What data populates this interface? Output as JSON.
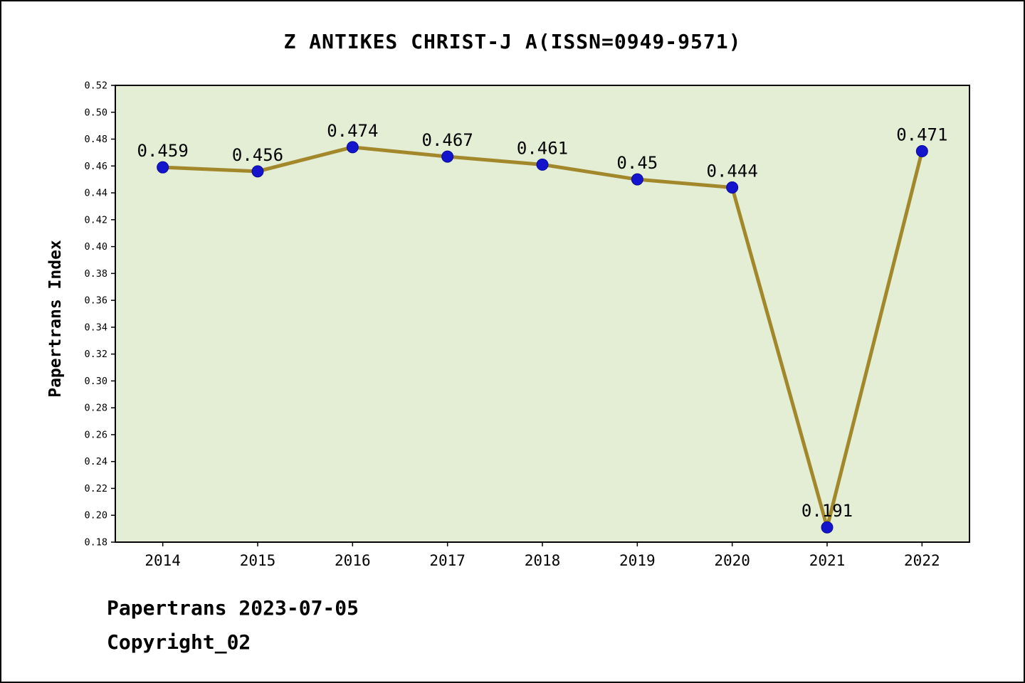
{
  "title": "Z ANTIKES CHRIST-J A(ISSN=0949-9571)",
  "footer": {
    "line1": "Papertrans 2023-07-05",
    "line2": "Copyright_02"
  },
  "chart_data": {
    "type": "line",
    "title": "Z ANTIKES CHRIST-J A(ISSN=0949-9571)",
    "xlabel": "",
    "ylabel": "Papertrans Index",
    "categories": [
      "2014",
      "2015",
      "2016",
      "2017",
      "2018",
      "2019",
      "2020",
      "2021",
      "2022"
    ],
    "values": [
      0.459,
      0.456,
      0.474,
      0.467,
      0.461,
      0.45,
      0.444,
      0.191,
      0.471
    ],
    "point_labels": [
      "0.459",
      "0.456",
      "0.474",
      "0.467",
      "0.461",
      "0.45",
      "0.444",
      "0.191",
      "0.471"
    ],
    "ylim": [
      0.18,
      0.52
    ],
    "ytick_step": 0.02,
    "grid": false,
    "legend": "none",
    "colors": {
      "plot_bg": "#e3eed4",
      "page_bg": "#ffffff",
      "line": "#a2882b",
      "marker": "#1414cc",
      "marker_edge": "#0b0b96",
      "axis": "#000000",
      "text": "#000000"
    }
  }
}
